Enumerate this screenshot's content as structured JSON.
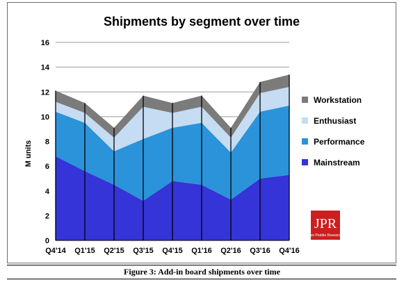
{
  "caption": "Figure 3: Add-in board shipments over time",
  "logo": {
    "text": "JPR",
    "subtext": "Jon Peddie Research",
    "color": "#cc1f1f"
  },
  "chart_data": {
    "type": "area",
    "stacked": true,
    "title": "Shipments by segment over time",
    "xlabel": "",
    "ylabel": "M units",
    "ylim": [
      0,
      16
    ],
    "yticks": [
      0,
      2,
      4,
      6,
      8,
      10,
      12,
      14,
      16
    ],
    "grid": true,
    "legend_position": "right",
    "x": [
      "Q4'14",
      "Q1'15",
      "Q2'15",
      "Q3'15",
      "Q4'15",
      "Q1'16",
      "Q2'16",
      "Q3'16",
      "Q4'16"
    ],
    "series": [
      {
        "name": "Mainstream",
        "color": "#3434d8",
        "values": [
          6.8,
          5.6,
          4.5,
          3.2,
          4.8,
          4.5,
          3.3,
          5.0,
          5.3
        ]
      },
      {
        "name": "Performance",
        "color": "#2a93d9",
        "values": [
          3.6,
          3.9,
          2.7,
          5.0,
          4.3,
          5.0,
          3.8,
          5.4,
          5.6
        ]
      },
      {
        "name": "Enthusiast",
        "color": "#c5dcf2",
        "values": [
          0.8,
          0.8,
          1.1,
          2.6,
          1.2,
          1.3,
          1.2,
          1.5,
          1.5
        ]
      },
      {
        "name": "Workstation",
        "color": "#7b7b7b",
        "values": [
          0.9,
          0.8,
          0.8,
          0.9,
          0.8,
          0.9,
          0.8,
          0.9,
          1.0
        ]
      }
    ]
  }
}
